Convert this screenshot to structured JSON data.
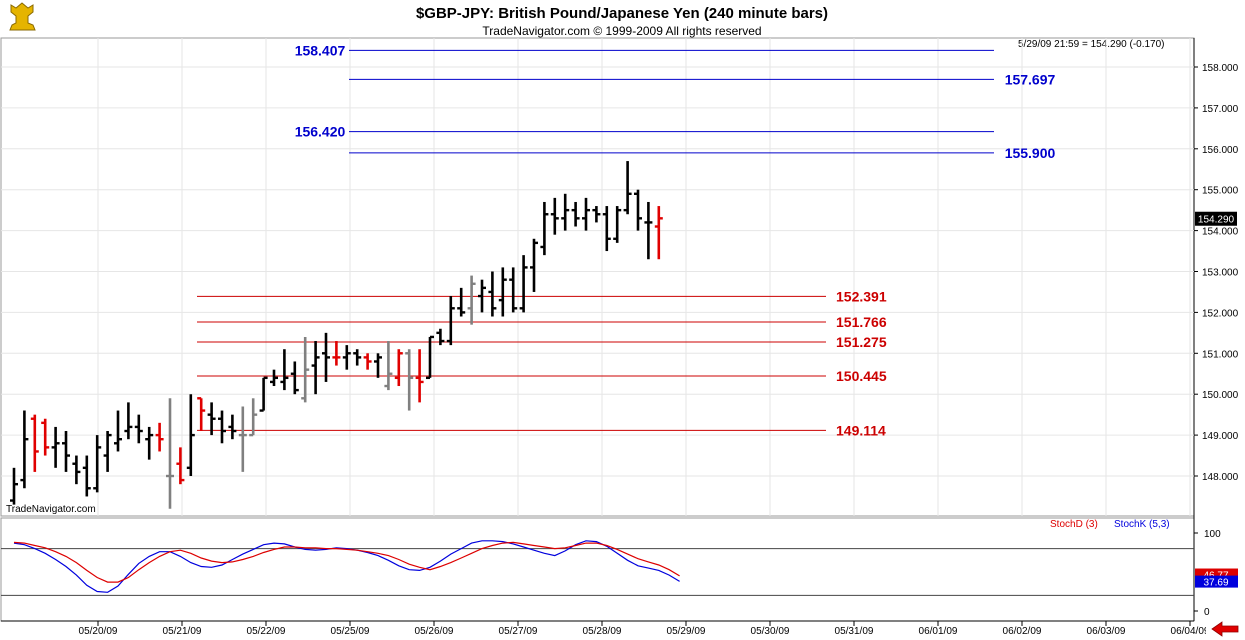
{
  "header": {
    "title": "$GBP-JPY:  British Pound/Japanese Yen  (240 minute bars)",
    "subtitle": "TradeNavigator.com © 1999-2009 All rights reserved",
    "last_quote": "5/29/09 21:59 = 154.290 (-0.170)",
    "watermark": "TradeNavigator.com",
    "logo_icon": "trophy-logo-icon"
  },
  "chart_data": [
    {
      "type": "ohlc",
      "title": "$GBP-JPY:  British Pound/Japanese Yen  (240 minute bars)",
      "ylim": [
        147.4,
        158.7
      ],
      "y_ticks": [
        "158.000",
        "157.000",
        "156.000",
        "155.000",
        "154.000",
        "153.000",
        "152.000",
        "151.000",
        "150.000",
        "149.000",
        "148.000"
      ],
      "x_ticks": [
        "05/20/09",
        "05/21/09",
        "05/22/09",
        "05/25/09",
        "05/26/09",
        "05/27/09",
        "05/28/09",
        "05/29/09",
        "05/30/09",
        "05/31/09",
        "06/01/09",
        "06/02/09",
        "06/03/09",
        "06/04/09"
      ],
      "last_price_label": "154.290",
      "grid": true,
      "colors": {
        "up": "#000000",
        "down": "#e00000",
        "neutral": "#808080",
        "fib_upper": "#0000cc",
        "fib_lower": "#cc0000"
      },
      "bars": [
        {
          "o": 147.4,
          "h": 148.2,
          "l": 147.3,
          "c": 147.8,
          "d": "up"
        },
        {
          "o": 147.9,
          "h": 149.6,
          "l": 147.7,
          "c": 148.9,
          "d": "up"
        },
        {
          "o": 149.4,
          "h": 149.5,
          "l": 148.1,
          "c": 148.6,
          "d": "down"
        },
        {
          "o": 149.3,
          "h": 149.4,
          "l": 148.5,
          "c": 148.7,
          "d": "down"
        },
        {
          "o": 148.7,
          "h": 149.2,
          "l": 148.2,
          "c": 148.8,
          "d": "up"
        },
        {
          "o": 148.8,
          "h": 149.1,
          "l": 148.1,
          "c": 148.5,
          "d": "up"
        },
        {
          "o": 148.3,
          "h": 148.5,
          "l": 147.8,
          "c": 148.1,
          "d": "up"
        },
        {
          "o": 148.2,
          "h": 148.5,
          "l": 147.5,
          "c": 147.7,
          "d": "up"
        },
        {
          "o": 147.7,
          "h": 149.0,
          "l": 147.6,
          "c": 148.7,
          "d": "up"
        },
        {
          "o": 148.5,
          "h": 149.1,
          "l": 148.1,
          "c": 149.0,
          "d": "up"
        },
        {
          "o": 148.8,
          "h": 149.6,
          "l": 148.6,
          "c": 148.9,
          "d": "up"
        },
        {
          "o": 149.1,
          "h": 149.8,
          "l": 148.9,
          "c": 149.2,
          "d": "up"
        },
        {
          "o": 149.2,
          "h": 149.5,
          "l": 148.8,
          "c": 149.1,
          "d": "up"
        },
        {
          "o": 148.9,
          "h": 149.2,
          "l": 148.4,
          "c": 149.0,
          "d": "up"
        },
        {
          "o": 149.0,
          "h": 149.3,
          "l": 148.6,
          "c": 148.9,
          "d": "down"
        },
        {
          "o": 148.0,
          "h": 149.9,
          "l": 147.2,
          "c": 148.0,
          "d": "neutral"
        },
        {
          "o": 148.3,
          "h": 148.7,
          "l": 147.8,
          "c": 147.9,
          "d": "down"
        },
        {
          "o": 148.2,
          "h": 150.0,
          "l": 148.0,
          "c": 149.0,
          "d": "up"
        },
        {
          "o": 149.9,
          "h": 149.9,
          "l": 149.1,
          "c": 149.6,
          "d": "down"
        },
        {
          "o": 149.5,
          "h": 149.8,
          "l": 149.0,
          "c": 149.4,
          "d": "up"
        },
        {
          "o": 149.4,
          "h": 149.6,
          "l": 148.8,
          "c": 149.1,
          "d": "up"
        },
        {
          "o": 149.2,
          "h": 149.5,
          "l": 148.9,
          "c": 149.1,
          "d": "up"
        },
        {
          "o": 149.0,
          "h": 149.7,
          "l": 148.1,
          "c": 149.0,
          "d": "neutral"
        },
        {
          "o": 149.0,
          "h": 149.9,
          "l": 149.0,
          "c": 149.5,
          "d": "neutral"
        },
        {
          "o": 149.6,
          "h": 150.4,
          "l": 149.6,
          "c": 150.4,
          "d": "up"
        },
        {
          "o": 150.3,
          "h": 150.6,
          "l": 150.2,
          "c": 150.4,
          "d": "up"
        },
        {
          "o": 150.3,
          "h": 151.1,
          "l": 150.1,
          "c": 150.4,
          "d": "up"
        },
        {
          "o": 150.5,
          "h": 150.8,
          "l": 150.0,
          "c": 150.1,
          "d": "up"
        },
        {
          "o": 149.9,
          "h": 151.4,
          "l": 149.8,
          "c": 150.6,
          "d": "neutral"
        },
        {
          "o": 150.7,
          "h": 151.3,
          "l": 150.0,
          "c": 150.9,
          "d": "up"
        },
        {
          "o": 151.0,
          "h": 151.5,
          "l": 150.3,
          "c": 150.9,
          "d": "up"
        },
        {
          "o": 150.9,
          "h": 151.3,
          "l": 150.7,
          "c": 150.9,
          "d": "down"
        },
        {
          "o": 150.9,
          "h": 151.2,
          "l": 150.6,
          "c": 151.0,
          "d": "up"
        },
        {
          "o": 151.0,
          "h": 151.1,
          "l": 150.7,
          "c": 150.9,
          "d": "up"
        },
        {
          "o": 150.9,
          "h": 151.0,
          "l": 150.6,
          "c": 150.8,
          "d": "down"
        },
        {
          "o": 150.8,
          "h": 151.0,
          "l": 150.4,
          "c": 150.9,
          "d": "up"
        },
        {
          "o": 150.2,
          "h": 151.3,
          "l": 150.1,
          "c": 150.5,
          "d": "neutral"
        },
        {
          "o": 150.4,
          "h": 151.1,
          "l": 150.2,
          "c": 151.0,
          "d": "down"
        },
        {
          "o": 151.0,
          "h": 151.1,
          "l": 149.6,
          "c": 150.4,
          "d": "neutral"
        },
        {
          "o": 150.4,
          "h": 151.1,
          "l": 149.8,
          "c": 150.3,
          "d": "down"
        },
        {
          "o": 150.4,
          "h": 151.4,
          "l": 150.4,
          "c": 151.4,
          "d": "up"
        },
        {
          "o": 151.5,
          "h": 151.6,
          "l": 151.2,
          "c": 151.3,
          "d": "up"
        },
        {
          "o": 151.3,
          "h": 152.4,
          "l": 151.2,
          "c": 152.1,
          "d": "up"
        },
        {
          "o": 152.1,
          "h": 152.6,
          "l": 151.9,
          "c": 152.0,
          "d": "up"
        },
        {
          "o": 152.1,
          "h": 152.9,
          "l": 151.7,
          "c": 152.7,
          "d": "neutral"
        },
        {
          "o": 152.4,
          "h": 152.8,
          "l": 152.0,
          "c": 152.6,
          "d": "up"
        },
        {
          "o": 152.5,
          "h": 153.0,
          "l": 151.9,
          "c": 152.1,
          "d": "up"
        },
        {
          "o": 152.3,
          "h": 153.1,
          "l": 151.9,
          "c": 152.8,
          "d": "up"
        },
        {
          "o": 152.8,
          "h": 153.1,
          "l": 152.0,
          "c": 152.1,
          "d": "up"
        },
        {
          "o": 152.1,
          "h": 153.4,
          "l": 152.0,
          "c": 153.1,
          "d": "up"
        },
        {
          "o": 153.1,
          "h": 153.8,
          "l": 152.5,
          "c": 153.7,
          "d": "up"
        },
        {
          "o": 153.6,
          "h": 154.7,
          "l": 153.4,
          "c": 154.4,
          "d": "up"
        },
        {
          "o": 154.4,
          "h": 154.8,
          "l": 153.9,
          "c": 154.3,
          "d": "up"
        },
        {
          "o": 154.3,
          "h": 154.9,
          "l": 154.0,
          "c": 154.5,
          "d": "up"
        },
        {
          "o": 154.5,
          "h": 154.7,
          "l": 154.1,
          "c": 154.3,
          "d": "up"
        },
        {
          "o": 154.3,
          "h": 154.8,
          "l": 154.0,
          "c": 154.5,
          "d": "up"
        },
        {
          "o": 154.5,
          "h": 154.6,
          "l": 154.2,
          "c": 154.4,
          "d": "up"
        },
        {
          "o": 154.4,
          "h": 154.6,
          "l": 153.5,
          "c": 153.8,
          "d": "up"
        },
        {
          "o": 153.8,
          "h": 154.6,
          "l": 153.7,
          "c": 154.5,
          "d": "up"
        },
        {
          "o": 154.5,
          "h": 155.7,
          "l": 154.4,
          "c": 154.9,
          "d": "up"
        },
        {
          "o": 154.9,
          "h": 155.0,
          "l": 154.0,
          "c": 154.3,
          "d": "up"
        },
        {
          "o": 154.2,
          "h": 154.7,
          "l": 153.3,
          "c": 154.2,
          "d": "up"
        },
        {
          "o": 154.1,
          "h": 154.6,
          "l": 153.3,
          "c": 154.3,
          "d": "down"
        }
      ],
      "fib_upper": [
        {
          "value": 158.407,
          "label": "158.407",
          "label_side": "left"
        },
        {
          "value": 157.697,
          "label": "157.697",
          "label_side": "right"
        },
        {
          "value": 156.42,
          "label": "156.420",
          "label_side": "left"
        },
        {
          "value": 155.9,
          "label": "155.900",
          "label_side": "right"
        }
      ],
      "fib_lower": [
        {
          "value": 152.391,
          "label": "152.391"
        },
        {
          "value": 151.766,
          "label": "151.766"
        },
        {
          "value": 151.275,
          "label": "151.275"
        },
        {
          "value": 150.445,
          "label": "150.445"
        },
        {
          "value": 149.114,
          "label": "149.114"
        }
      ]
    },
    {
      "type": "line",
      "ylim": [
        0,
        100
      ],
      "y_ticks": [
        "100",
        "0"
      ],
      "reference_lines": [
        80,
        20
      ],
      "series": [
        {
          "name": "StochD (3)",
          "color": "#dd0000",
          "values": [
            88,
            87,
            84,
            81,
            76,
            70,
            62,
            52,
            43,
            37,
            37,
            43,
            53,
            62,
            70,
            76,
            78,
            74,
            68,
            64,
            62,
            63,
            66,
            70,
            75,
            79,
            82,
            82,
            81,
            81,
            80,
            80,
            79,
            78,
            76,
            74,
            71,
            66,
            60,
            56,
            53,
            57,
            62,
            68,
            74,
            80,
            84,
            87,
            88,
            86,
            84,
            82,
            80,
            81,
            84,
            87,
            87,
            84,
            79,
            73,
            67,
            63,
            59,
            53,
            45
          ]
        },
        {
          "name": "StochK (5,3)",
          "color": "#0000dd",
          "values": [
            87,
            85,
            80,
            74,
            66,
            57,
            46,
            33,
            25,
            24,
            32,
            47,
            61,
            70,
            76,
            76,
            70,
            62,
            57,
            56,
            59,
            66,
            73,
            79,
            85,
            87,
            86,
            82,
            79,
            78,
            79,
            81,
            80,
            78,
            75,
            71,
            65,
            58,
            53,
            52,
            56,
            64,
            73,
            80,
            87,
            90,
            90,
            89,
            86,
            82,
            78,
            74,
            71,
            77,
            85,
            90,
            89,
            83,
            74,
            65,
            58,
            55,
            52,
            46,
            38
          ]
        }
      ],
      "last_values": [
        "46.77",
        "37.69"
      ]
    }
  ]
}
